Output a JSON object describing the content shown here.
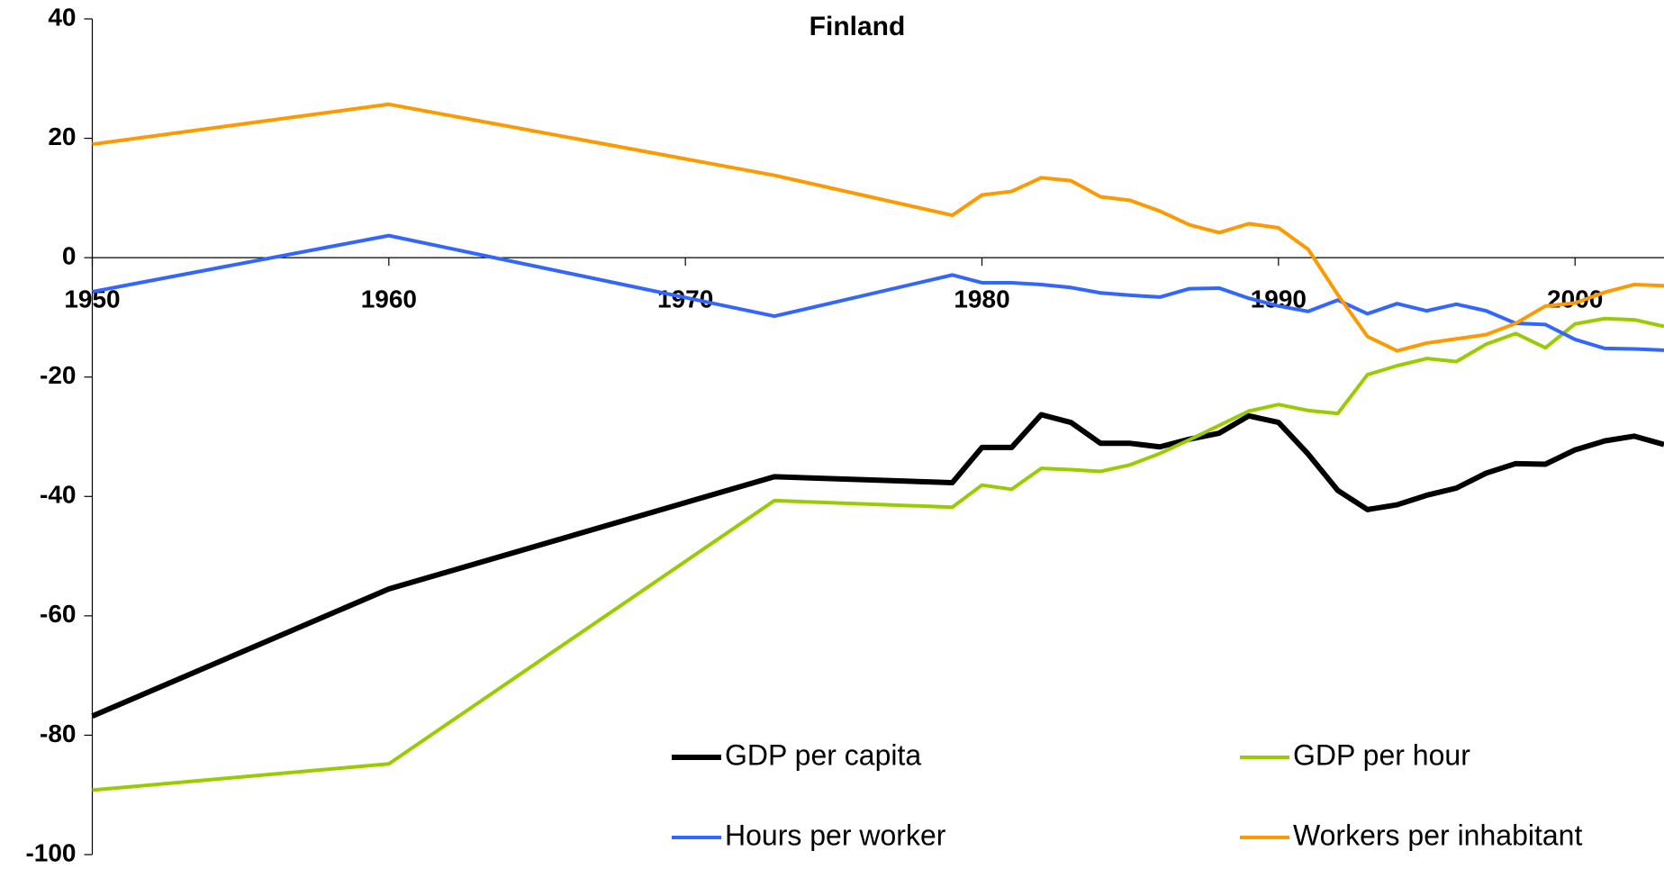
{
  "chart_data": {
    "type": "line",
    "title": "Finland",
    "x": [
      1950,
      1960,
      1973,
      1979,
      1980,
      1981,
      1982,
      1983,
      1984,
      1985,
      1986,
      1987,
      1988,
      1989,
      1990,
      1991,
      1992,
      1993,
      1994,
      1995,
      1996,
      1997,
      1998,
      1999,
      2000,
      2001,
      2002,
      2003
    ],
    "series": [
      {
        "name": "GDP per capita",
        "color": "#000000",
        "values": [
          -76.8,
          -55.5,
          -36.7,
          -37.7,
          -31.8,
          -31.8,
          -26.3,
          -27.6,
          -31.1,
          -31.1,
          -31.7,
          -30.4,
          -29.4,
          -26.5,
          -27.6,
          -32.9,
          -39.0,
          -42.2,
          -41.4,
          -39.8,
          -38.6,
          -36.1,
          -34.5,
          -34.6,
          -32.2,
          -30.7,
          -29.9,
          -31.3
        ]
      },
      {
        "name": "GDP per hour",
        "color": "#99cc00",
        "values": [
          -89.2,
          -84.8,
          -40.7,
          -41.8,
          -38.1,
          -38.8,
          -35.3,
          -35.5,
          -35.8,
          -34.7,
          -32.8,
          -30.5,
          -28.1,
          -25.7,
          -24.6,
          -25.6,
          -26.1,
          -19.6,
          -18.1,
          -16.9,
          -17.4,
          -14.5,
          -12.7,
          -15.1,
          -11.1,
          -10.2,
          -10.4,
          -11.5
        ]
      },
      {
        "name": "Hours per worker",
        "color": "#3366ff",
        "values": [
          -5.7,
          3.7,
          -9.8,
          -2.9,
          -4.2,
          -4.2,
          -4.5,
          -5.0,
          -5.9,
          -6.3,
          -6.6,
          -5.2,
          -5.1,
          -6.8,
          -8.1,
          -9.0,
          -7.1,
          -9.4,
          -7.7,
          -8.9,
          -7.8,
          -8.9,
          -11.0,
          -11.2,
          -13.7,
          -15.2,
          -15.3,
          -15.5
        ]
      },
      {
        "name": "Workers per inhabitant",
        "color": "#ff9900",
        "values": [
          19.0,
          25.7,
          13.8,
          7.1,
          10.5,
          11.1,
          13.4,
          12.9,
          10.2,
          9.6,
          7.8,
          5.5,
          4.2,
          5.7,
          5.0,
          1.4,
          -6.2,
          -13.2,
          -15.6,
          -14.3,
          -13.6,
          -12.9,
          -11.0,
          -8.1,
          -7.6,
          -5.8,
          -4.5,
          -4.7
        ]
      }
    ],
    "xlim": [
      1950,
      2003
    ],
    "xticks": [
      1950,
      1960,
      1970,
      1980,
      1990,
      2000
    ],
    "ylim": [
      -100,
      40
    ],
    "yticks": [
      -100,
      -80,
      -60,
      -40,
      -20,
      0,
      20,
      40
    ],
    "grid": false
  }
}
